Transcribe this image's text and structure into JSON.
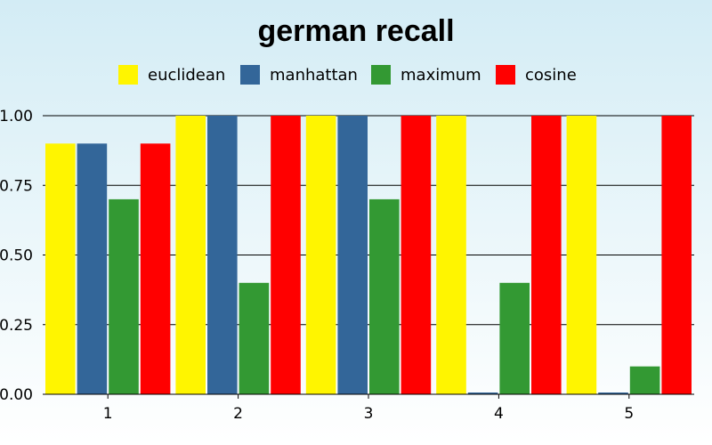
{
  "chart_data": {
    "type": "bar",
    "title": "german recall",
    "xlabel": "",
    "ylabel": "",
    "categories": [
      "1",
      "2",
      "3",
      "4",
      "5"
    ],
    "series": [
      {
        "name": "euclidean",
        "color": "#fff500",
        "values": [
          0.9,
          1.0,
          1.0,
          1.0,
          1.0
        ]
      },
      {
        "name": "manhattan",
        "color": "#336699",
        "values": [
          0.9,
          1.0,
          1.0,
          0.0,
          0.0
        ]
      },
      {
        "name": "maximum",
        "color": "#339933",
        "values": [
          0.7,
          0.4,
          0.7,
          0.4,
          0.1
        ]
      },
      {
        "name": "cosine",
        "color": "#ff0000",
        "values": [
          0.9,
          1.0,
          1.0,
          1.0,
          1.0
        ]
      }
    ],
    "ylim": [
      0,
      1
    ],
    "yticks": [
      "0.00",
      "0.25",
      "0.50",
      "0.75",
      "1.00"
    ],
    "ytick_values": [
      0,
      0.25,
      0.5,
      0.75,
      1.0
    ],
    "grid": true,
    "legend_position": "top"
  }
}
